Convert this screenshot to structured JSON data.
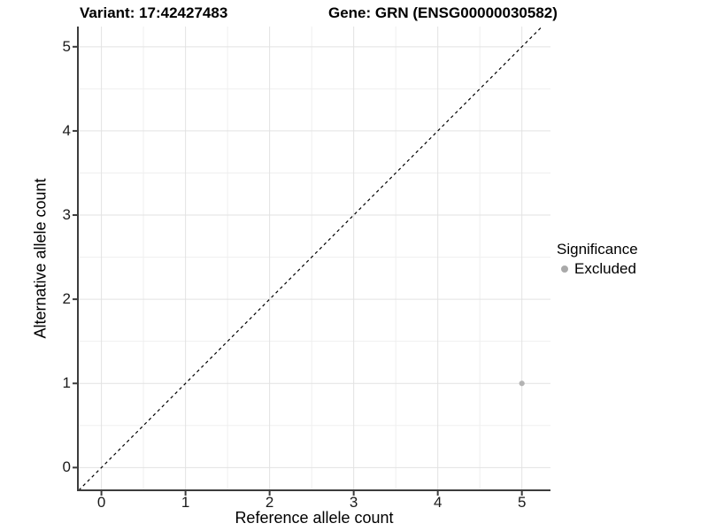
{
  "titles": {
    "variant": "Variant: 17:42427483",
    "gene": "Gene: GRN (ENSG00000030582)"
  },
  "chart_data": {
    "type": "scatter",
    "title_left": "Variant: 17:42427483",
    "title_right": "Gene: GRN (ENSG00000030582)",
    "xlabel": "Reference allele count",
    "ylabel": "Alternative allele count",
    "xticks": [
      0,
      1,
      2,
      3,
      4,
      5
    ],
    "yticks": [
      0,
      1,
      2,
      3,
      4,
      5
    ],
    "xlim": [
      -0.28,
      5.34
    ],
    "ylim": [
      -0.27,
      5.24
    ],
    "minor_step": 0.5,
    "grid": "major+minor",
    "identity_line": {
      "style": "dashed",
      "slope": 1,
      "intercept": 0,
      "color": "#000000"
    },
    "points": [
      {
        "x": 5,
        "y": 1,
        "series": "Excluded"
      }
    ],
    "series": [
      {
        "name": "Excluded",
        "color": "#b3b3b3"
      }
    ],
    "legend": {
      "title": "Significance",
      "position": "right",
      "items": [
        {
          "label": "Excluded",
          "color": "#a9a9a9"
        }
      ]
    }
  },
  "colors": {
    "background": "#ffffff",
    "grid_major": "#e2e2e2",
    "grid_minor": "#efefef",
    "axis_line": "#3c3c3c",
    "tick_mark": "#3c3c3c",
    "text": "#000000",
    "point": "#b3b3b3"
  }
}
